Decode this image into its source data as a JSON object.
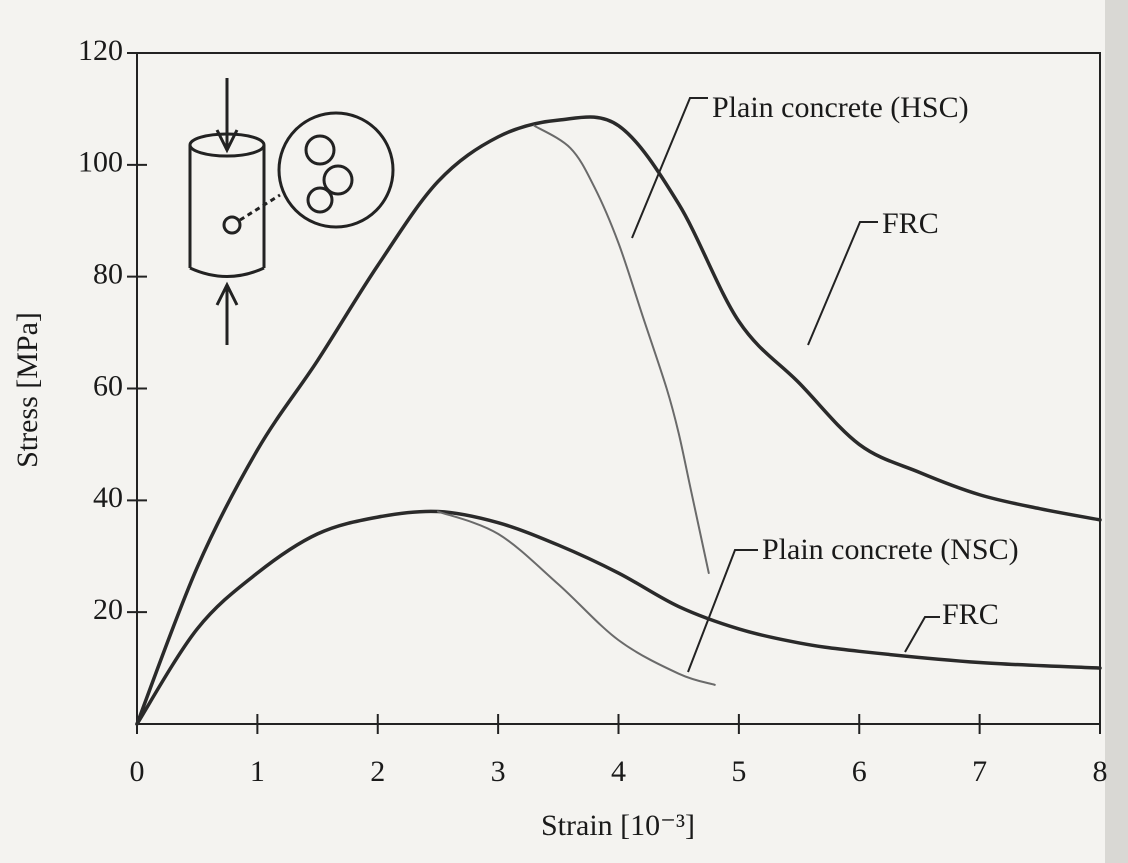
{
  "chart_data": {
    "type": "line",
    "xlabel": "Strain [10⁻³]",
    "ylabel": "Stress [MPa]",
    "xlim": [
      0,
      8
    ],
    "ylim": [
      0,
      120
    ],
    "xticks": [
      0,
      1,
      2,
      3,
      4,
      5,
      6,
      7,
      8
    ],
    "yticks": [
      20,
      40,
      60,
      80,
      100,
      120
    ],
    "series": [
      {
        "name": "FRC",
        "color": "#2a2a2a",
        "width": 3.5,
        "x": [
          0,
          0.5,
          1,
          1.5,
          2,
          2.5,
          3,
          3.5,
          4,
          4.5,
          5,
          5.5,
          6,
          6.5,
          7,
          7.5,
          8
        ],
        "values": [
          0,
          28,
          49,
          65,
          82,
          97,
          105,
          108,
          107,
          93,
          72,
          61,
          50,
          45,
          41,
          38.5,
          36.5
        ]
      },
      {
        "name": "Plain concrete (HSC)",
        "color": "#6a6a6a",
        "width": 2,
        "x": [
          3.3,
          3.6,
          3.8,
          4,
          4.2,
          4.4,
          4.5,
          4.6,
          4.75
        ],
        "values": [
          107,
          103,
          96,
          86,
          73,
          60,
          52,
          42,
          27
        ]
      },
      {
        "name": "FRC",
        "color": "#2a2a2a",
        "width": 3.5,
        "x": [
          0,
          0.5,
          1,
          1.5,
          2,
          2.5,
          3,
          3.5,
          4,
          4.5,
          5,
          5.5,
          6,
          7,
          8
        ],
        "values": [
          0,
          17,
          27,
          34,
          37,
          38,
          36,
          32,
          27,
          21,
          17,
          14.5,
          13,
          11,
          10
        ]
      },
      {
        "name": "Plain concrete (NSC)",
        "color": "#6a6a6a",
        "width": 2,
        "x": [
          2.5,
          3,
          3.5,
          4,
          4.5,
          4.8
        ],
        "values": [
          38,
          34,
          25,
          15,
          9,
          7
        ]
      }
    ]
  }
}
